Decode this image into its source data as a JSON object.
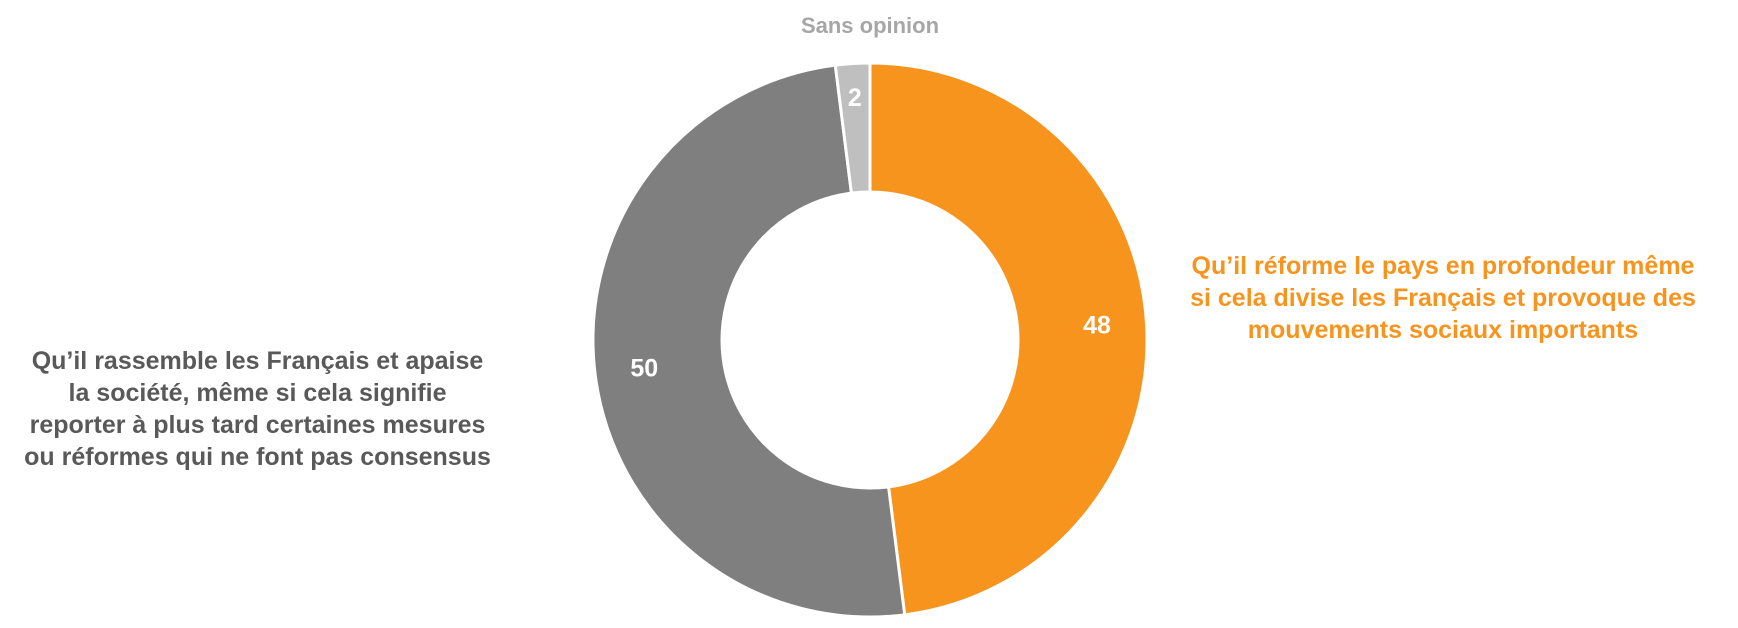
{
  "chart_data": {
    "type": "pie",
    "variant": "donut",
    "categories": [
      "Qu’il réforme le pays en profondeur même si cela divise les Français et provoque des mouvements sociaux importants",
      "Qu’il rassemble les Français et apaise la société, même si cela signifie reporter à plus tard certaines mesures ou réformes qui ne font pas consensus",
      "Sans opinion"
    ],
    "values": [
      48,
      50,
      2
    ],
    "colors": [
      "#F7941E",
      "#7F7F7F",
      "#BFBFBF"
    ],
    "label_colors": [
      "#F7941E",
      "#595959",
      "#A6A6A6"
    ],
    "data_label_color": "#FFFFFF",
    "start_angle_deg": 0,
    "direction": "clockwise"
  },
  "labels": {
    "left": "Qu’il rassemble les Français et apaise\nla société, même si cela signifie\nreporter à plus tard certaines mesures\nou réformes qui ne font pas consensus",
    "right": "Qu’il réforme le pays en profondeur même\nsi cela divise les Français et provoque des\nmouvements sociaux importants",
    "top": "Sans opinion"
  }
}
